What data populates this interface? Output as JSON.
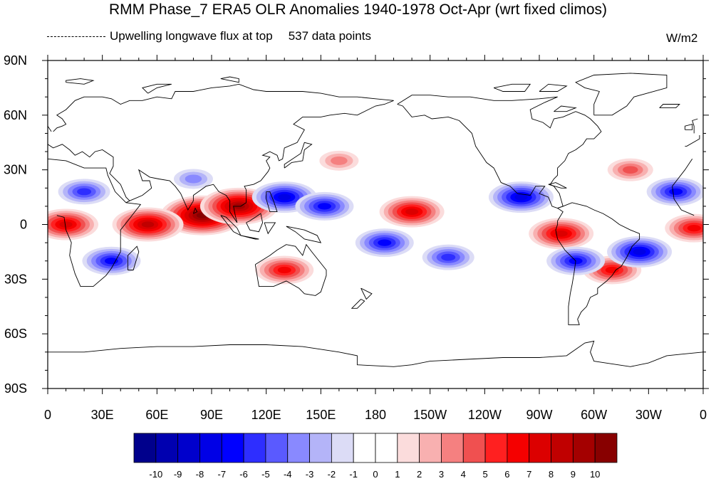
{
  "title": "RMM Phase_7 ERA5 OLR Anomalies 1940-1978 Oct-Apr (wrt fixed climos)",
  "subtitle_left": "Upwelling longwave flux at top",
  "data_points": "537 data points",
  "units": "W/m2",
  "lat_labels": [
    "90N",
    "60N",
    "30N",
    "0",
    "30S",
    "60S",
    "90S"
  ],
  "lon_labels": [
    "0",
    "30E",
    "60E",
    "90E",
    "120E",
    "150E",
    "180",
    "150W",
    "120W",
    "90W",
    "60W",
    "30W",
    "0"
  ],
  "colorbar": {
    "labels": [
      "-10",
      "-9",
      "-8",
      "-7",
      "-6",
      "-5",
      "-4",
      "-3",
      "-2",
      "-1",
      "0",
      "1",
      "2",
      "3",
      "4",
      "5",
      "6",
      "7",
      "8",
      "9",
      "10"
    ],
    "colors": [
      "#00008c",
      "#0000b0",
      "#0000cc",
      "#0000e6",
      "#0000ff",
      "#2e2eff",
      "#5a5aff",
      "#8989ff",
      "#b4b4f8",
      "#dcdcf6",
      "#ffffff",
      "#ffffff",
      "#fbdcdc",
      "#f8b0b0",
      "#f58080",
      "#f05050",
      "#ff2020",
      "#f50000",
      "#dc0000",
      "#c00000",
      "#a40000",
      "#880000"
    ]
  },
  "colors": {
    "frame": "#000000",
    "coast": "#000000"
  },
  "map_data": {
    "projection": "cylindrical equidistant, central longitude 180",
    "lon_range": [
      0,
      360
    ],
    "lat_range": [
      -90,
      90
    ],
    "anomaly_blobs": [
      {
        "lon": 85,
        "lat": 5,
        "value": 10
      },
      {
        "lon": 55,
        "lat": 0,
        "value": 8
      },
      {
        "lon": 10,
        "lat": 0,
        "value": 7
      },
      {
        "lon": 105,
        "lat": 10,
        "value": 9
      },
      {
        "lon": 130,
        "lat": -25,
        "value": 6
      },
      {
        "lon": 200,
        "lat": 7,
        "value": 7
      },
      {
        "lon": 282,
        "lat": -5,
        "value": 7
      },
      {
        "lon": 310,
        "lat": -25,
        "value": 6
      },
      {
        "lon": 355,
        "lat": -2,
        "value": 6
      },
      {
        "lon": 160,
        "lat": 35,
        "value": 3
      },
      {
        "lon": 320,
        "lat": 30,
        "value": 4
      },
      {
        "lon": 130,
        "lat": 15,
        "value": -7
      },
      {
        "lon": 152,
        "lat": 10,
        "value": -6
      },
      {
        "lon": 185,
        "lat": -10,
        "value": -6
      },
      {
        "lon": 220,
        "lat": -18,
        "value": -5
      },
      {
        "lon": 260,
        "lat": 15,
        "value": -7
      },
      {
        "lon": 325,
        "lat": -15,
        "value": -7
      },
      {
        "lon": 35,
        "lat": -20,
        "value": -6
      },
      {
        "lon": 20,
        "lat": 18,
        "value": -5
      },
      {
        "lon": 345,
        "lat": 18,
        "value": -6
      },
      {
        "lon": 290,
        "lat": -20,
        "value": -6
      },
      {
        "lon": 80,
        "lat": 25,
        "value": -3
      }
    ]
  }
}
